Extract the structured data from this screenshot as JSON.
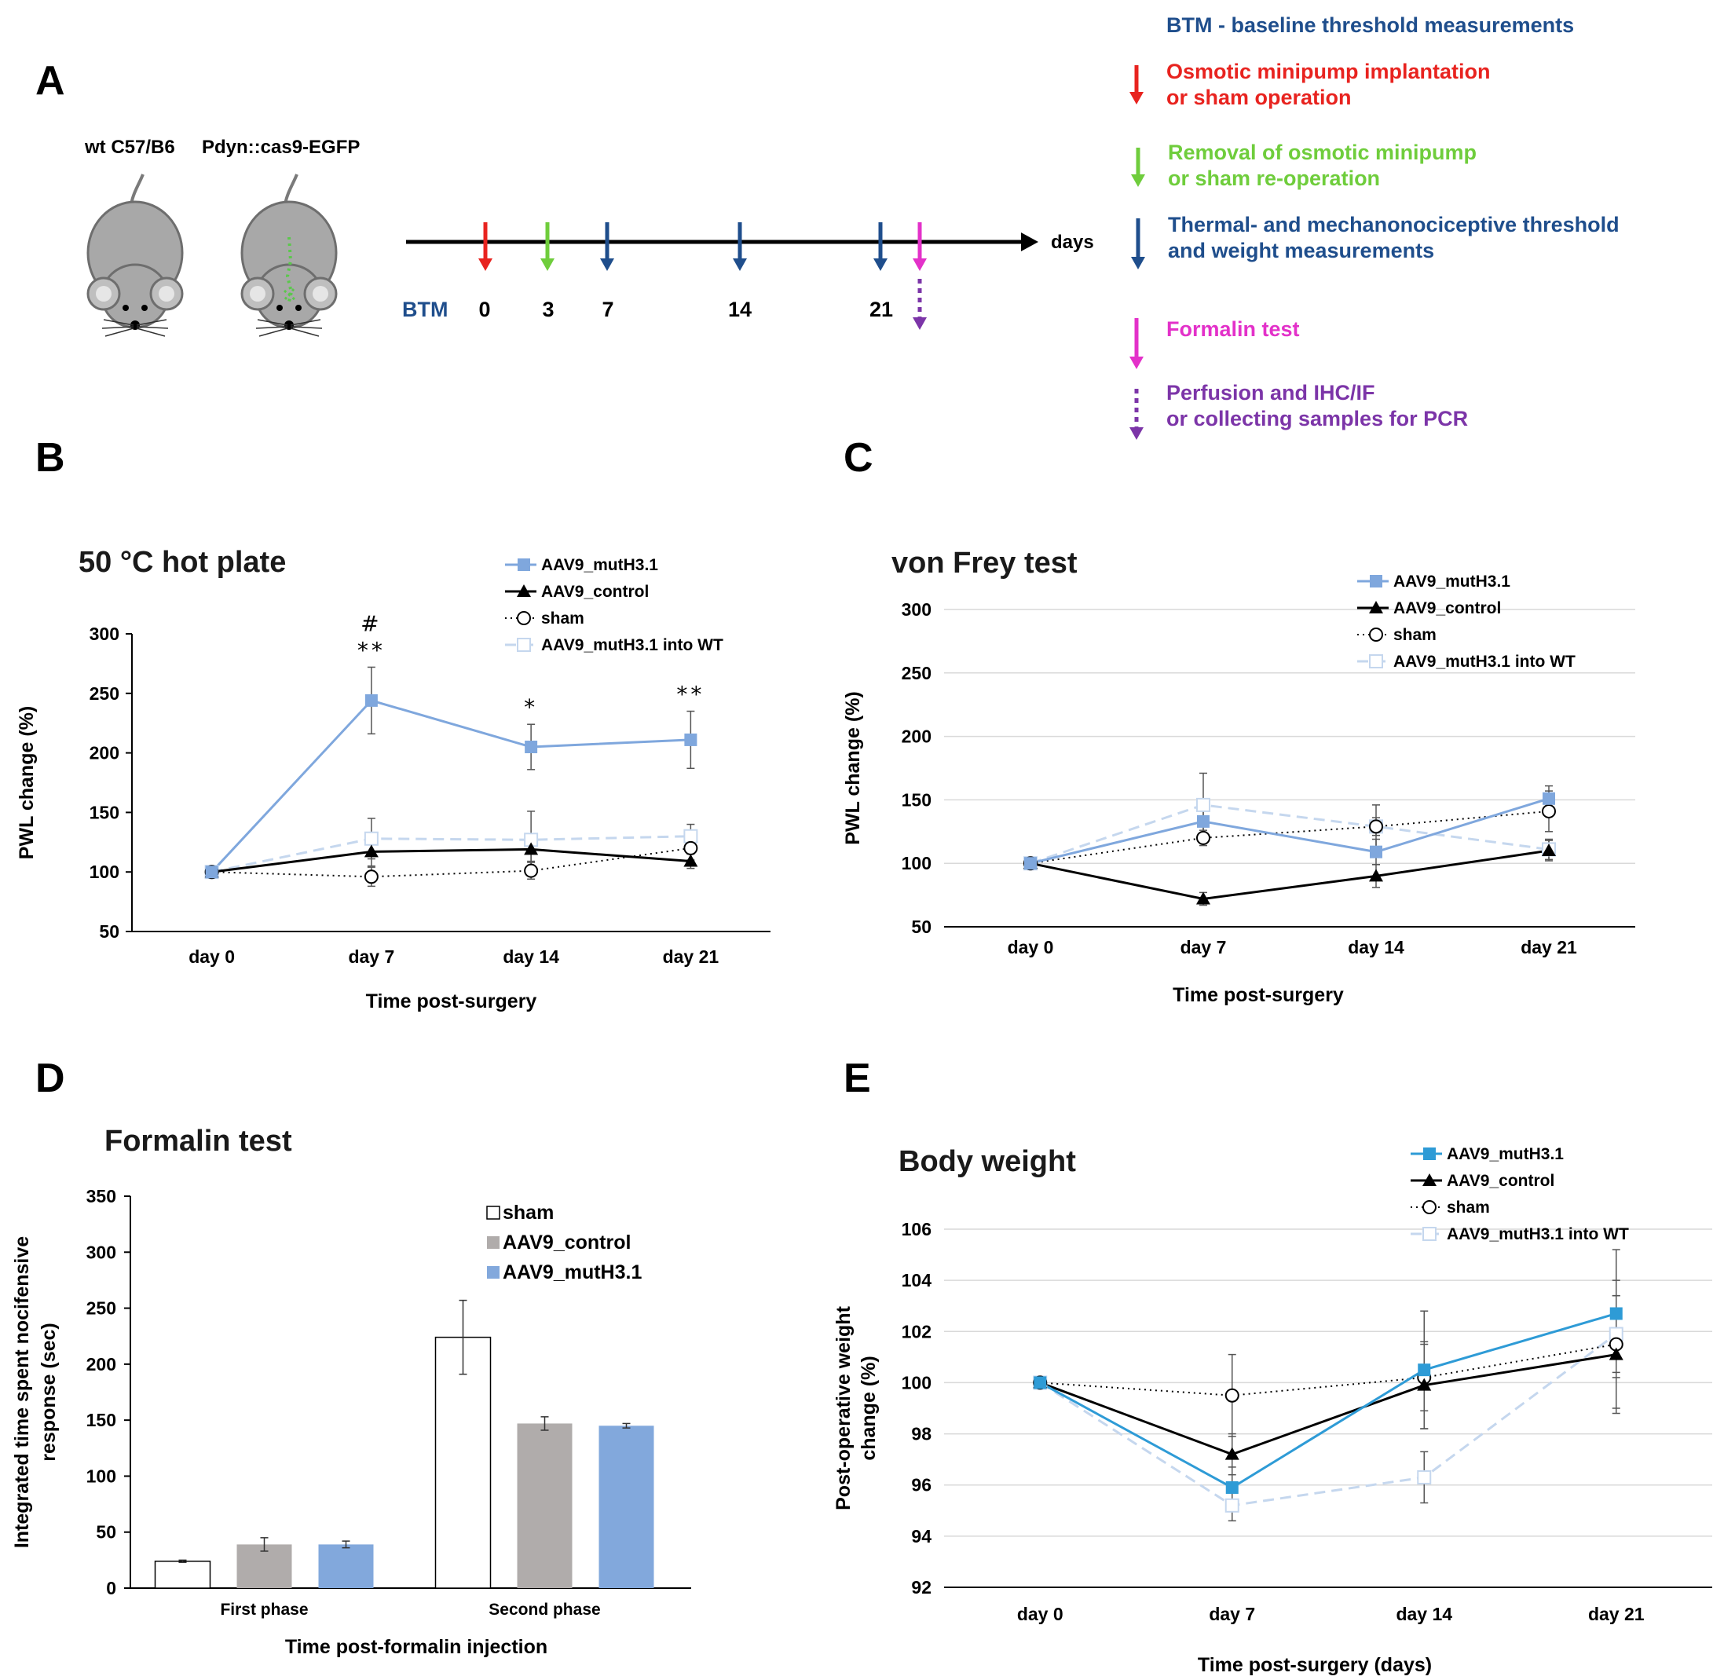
{
  "colors": {
    "mut": "#7fa7dd",
    "control": "#000000",
    "sham": "#000000",
    "mut_wt": "#c5d7ee",
    "mut_e": "#2e9bd6",
    "bar_sham": "#ffffff",
    "bar_control": "#b0acab",
    "bar_mut": "#82a8dc",
    "red": "#e8231f",
    "green": "#6fcd3c",
    "blue": "#1f4e8c",
    "magenta": "#e331c9",
    "purple": "#7c35a8",
    "grid": "#d9d9d9"
  },
  "panelA": {
    "letter": "A",
    "strain_wt": "wt C57/B6",
    "strain_pdyn": "Pdyn::cas9-EGFP",
    "btm_label": "BTM",
    "axis_end": "days",
    "day_labels": [
      "0",
      "3",
      "7",
      "14",
      "21"
    ],
    "legend": {
      "btm": "BTM - baseline threshold measurements",
      "red_l1": "Osmotic minipump implantation",
      "red_l2": "or sham operation",
      "green_l1": "Removal of osmotic minipump",
      "green_l2": "or sham re-operation",
      "blue_l1": "Thermal- and mechanonociceptive threshold",
      "blue_l2": "and weight measurements",
      "pink": "Formalin test",
      "purple_l1": "Perfusion and IHC/IF",
      "purple_l2": "or collecting samples for PCR"
    }
  },
  "chart_data": [
    {
      "panel": "B",
      "type": "line",
      "title": "50 °C hot plate",
      "xlabel": "Time post-surgery",
      "ylabel": "PWL change (%)",
      "categories": [
        "day 0",
        "day 7",
        "day 14",
        "day 21"
      ],
      "ylim": [
        50,
        300
      ],
      "yticks": [
        50,
        100,
        150,
        200,
        250,
        300
      ],
      "grid": false,
      "legend_position": "top-right",
      "series": [
        {
          "name": "AAV9_mutH3.1",
          "values": [
            100,
            244,
            205,
            211
          ],
          "errors": [
            0,
            28,
            19,
            24
          ]
        },
        {
          "name": "AAV9_control",
          "values": [
            100,
            117,
            119,
            109
          ],
          "errors": [
            0,
            12,
            10,
            6
          ]
        },
        {
          "name": "sham",
          "values": [
            100,
            96,
            101,
            120
          ],
          "errors": [
            0,
            8,
            7,
            10
          ]
        },
        {
          "name": "AAV9_mutH3.1 into WT",
          "values": [
            100,
            128,
            127,
            130
          ],
          "errors": [
            0,
            17,
            24,
            10
          ]
        }
      ],
      "annotations": [
        {
          "category": "day 7",
          "lines": [
            "#",
            "**"
          ]
        },
        {
          "category": "day 14",
          "lines": [
            "*"
          ]
        },
        {
          "category": "day 21",
          "lines": [
            "**"
          ]
        }
      ]
    },
    {
      "panel": "C",
      "type": "line",
      "title": "von Frey test",
      "xlabel": "Time post-surgery",
      "ylabel": "PWL change (%)",
      "categories": [
        "day 0",
        "day 7",
        "day 14",
        "day 21"
      ],
      "ylim": [
        50,
        300
      ],
      "yticks": [
        50,
        100,
        150,
        200,
        250,
        300
      ],
      "grid": true,
      "legend_position": "top-right",
      "series": [
        {
          "name": "AAV9_mutH3.1",
          "values": [
            100,
            133,
            109,
            151
          ],
          "errors": [
            0,
            14,
            10,
            10
          ]
        },
        {
          "name": "AAV9_control",
          "values": [
            100,
            72,
            90,
            110
          ],
          "errors": [
            0,
            5,
            9,
            8
          ]
        },
        {
          "name": "sham",
          "values": [
            100,
            120,
            129,
            141
          ],
          "errors": [
            0,
            6,
            7,
            16
          ]
        },
        {
          "name": "AAV9_mutH3.1 into WT",
          "values": [
            100,
            146,
            129,
            111
          ],
          "errors": [
            0,
            25,
            17,
            8
          ]
        }
      ]
    },
    {
      "panel": "D",
      "type": "bar",
      "title": "Formalin test",
      "xlabel": "Time post-formalin injection",
      "ylabel": "Integrated time spent nocifensive response (sec)",
      "ylabel_l1": "Integrated time spent nocifensive",
      "ylabel_l2": "response (sec)",
      "categories": [
        "First phase",
        "Second phase"
      ],
      "ylim": [
        0,
        350
      ],
      "yticks": [
        0,
        50,
        100,
        150,
        200,
        250,
        300,
        350
      ],
      "legend_position": "top-right",
      "series": [
        {
          "name": "sham",
          "values": [
            24,
            224
          ],
          "errors": [
            1,
            33
          ]
        },
        {
          "name": "AAV9_control",
          "values": [
            39,
            147
          ],
          "errors": [
            6,
            6
          ]
        },
        {
          "name": "AAV9_mutH3.1",
          "values": [
            39,
            145
          ],
          "errors": [
            3,
            2
          ]
        }
      ]
    },
    {
      "panel": "E",
      "type": "line",
      "title": "Body weight",
      "xlabel": "Time post-surgery (days)",
      "ylabel": "Post-operative weight change (%)",
      "ylabel_l1": "Post-operative weight",
      "ylabel_l2": "change (%)",
      "categories": [
        "day 0",
        "day 7",
        "day 14",
        "day 21"
      ],
      "ylim": [
        92,
        106
      ],
      "yticks": [
        92,
        94,
        96,
        98,
        100,
        102,
        104,
        106
      ],
      "grid": true,
      "legend_position": "top-right",
      "series": [
        {
          "name": "AAV9_mutH3.1",
          "values": [
            100,
            95.9,
            100.5,
            102.7
          ],
          "errors": [
            0,
            0.8,
            2.3,
            2.5
          ]
        },
        {
          "name": "AAV9_control",
          "values": [
            100,
            97.2,
            99.9,
            101.1
          ],
          "errors": [
            0,
            0.8,
            1.7,
            2.3
          ]
        },
        {
          "name": "sham",
          "values": [
            100,
            99.5,
            100.2,
            101.5
          ],
          "errors": [
            0,
            1.6,
            1.3,
            2.5
          ]
        },
        {
          "name": "AAV9_mutH3.1 into WT",
          "values": [
            100,
            95.2,
            96.3,
            101.9
          ],
          "errors": [
            0,
            0.6,
            1.0,
            1.5
          ]
        }
      ]
    }
  ]
}
